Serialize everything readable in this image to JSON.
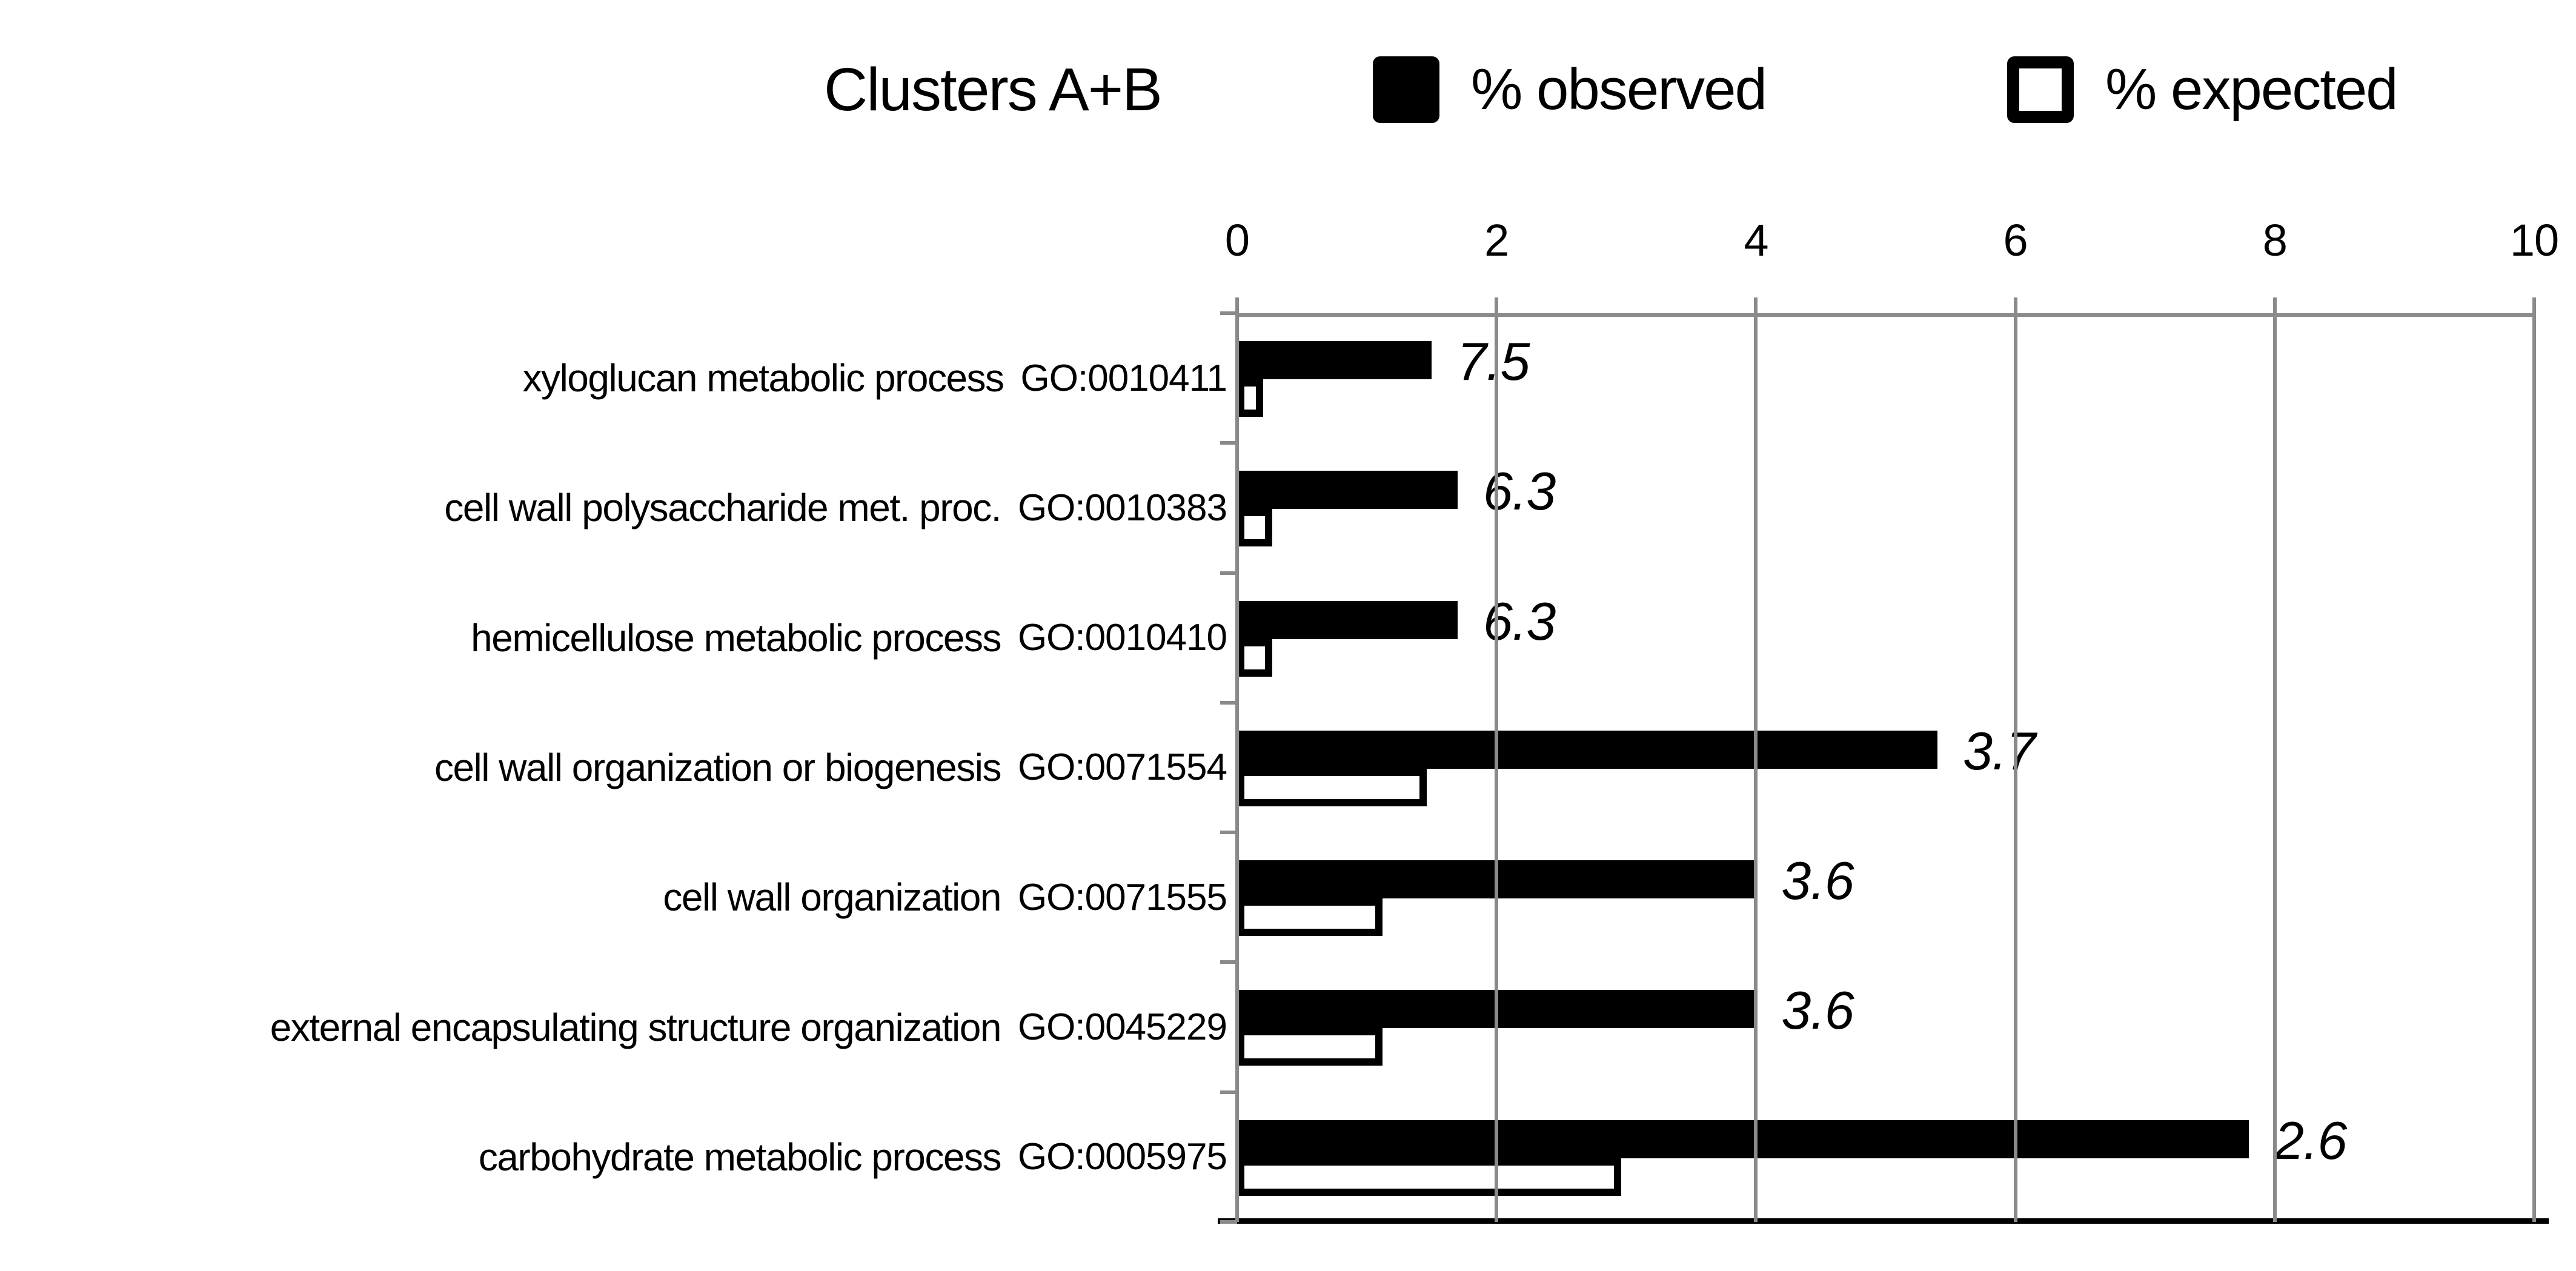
{
  "figure": {
    "title": "Clusters A+B",
    "legend": [
      {
        "label": "% observed",
        "swatch": "filled"
      },
      {
        "label": "% expected",
        "swatch": "outlined"
      }
    ]
  },
  "colors": {
    "observed_bar": "#000000",
    "expected_bar_fill": "#ffffff",
    "expected_bar_border": "#000000",
    "grid_line": "#8a8a8a",
    "baseline": "#000000",
    "text": "#000000",
    "background": "#ffffff"
  },
  "chart_data": {
    "type": "bar",
    "orientation": "horizontal",
    "title": "Clusters A+B",
    "xlabel": "",
    "ylabel": "",
    "xlim": [
      0,
      10
    ],
    "x_ticks": [
      0,
      2,
      4,
      6,
      8,
      10
    ],
    "grid": true,
    "legend_position": "top",
    "categories": [
      "xyloglucan metabolic process",
      "cell wall polysaccharide met. proc.",
      "hemicellulose metabolic process",
      "cell wall organization or biogenesis",
      "cell wall organization",
      "external encapsulating structure organization",
      "carbohydrate metabolic process"
    ],
    "go_ids": [
      "GO:0010411",
      "GO:0010383",
      "GO:0010410",
      "GO:0071554",
      "GO:0071555",
      "GO:0045229",
      "GO:0005975"
    ],
    "series": [
      {
        "name": "% observed",
        "style": "filled-black",
        "values": [
          1.5,
          1.7,
          1.7,
          5.4,
          4.0,
          4.0,
          7.8
        ]
      },
      {
        "name": "% expected",
        "style": "white-outlined",
        "values": [
          0.2,
          0.27,
          0.27,
          1.46,
          1.12,
          1.12,
          2.96
        ]
      }
    ],
    "fold_enrichment_labels": [
      "7.5",
      "6.3",
      "6.3",
      "3.7",
      "3.6",
      "3.6",
      "2.6"
    ]
  }
}
